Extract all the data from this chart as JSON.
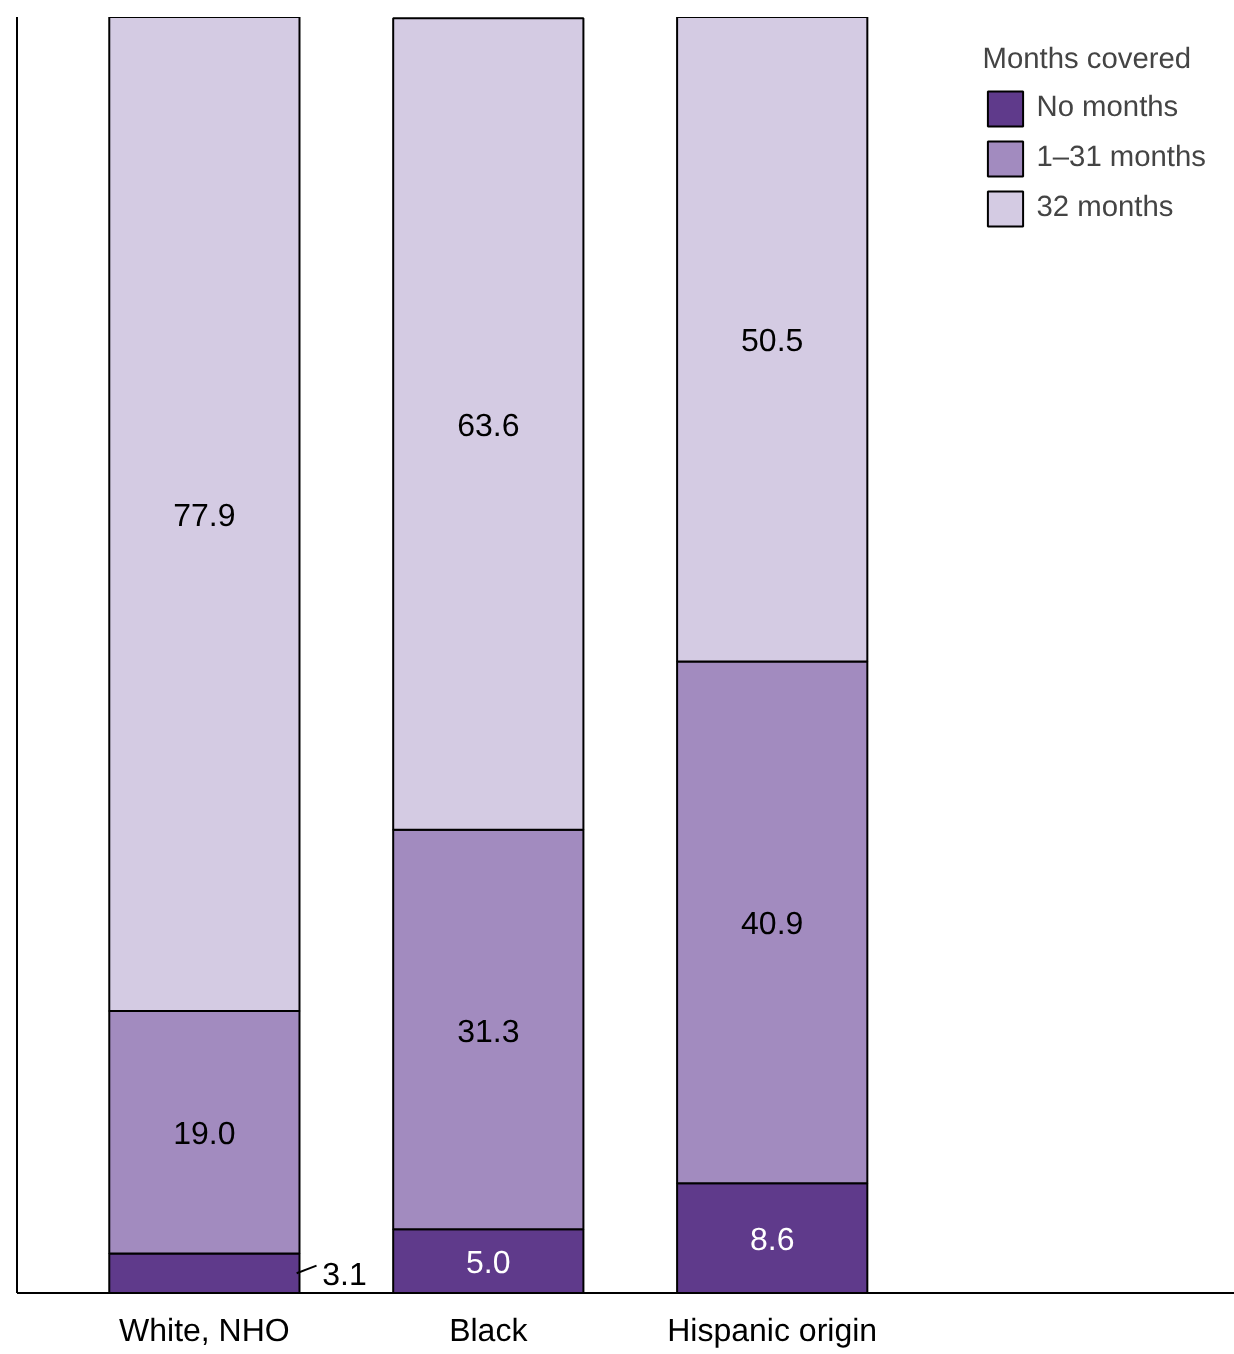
{
  "chart_data": {
    "type": "bar",
    "stacked": true,
    "categories": [
      "White, NHO",
      "Black",
      "Hispanic origin"
    ],
    "series": [
      {
        "name": "No months",
        "color": "#5f3a8b",
        "values": [
          3.1,
          5.0,
          8.6
        ],
        "value_labels": [
          "3.1",
          "5.0",
          "8.6"
        ]
      },
      {
        "name": "1–31 months",
        "color": "#a28bbf",
        "values": [
          19.0,
          31.3,
          40.9
        ],
        "value_labels": [
          "19.0",
          "31.3",
          "40.9"
        ]
      },
      {
        "name": "32 months",
        "color": "#d4cbe3",
        "values": [
          77.9,
          63.6,
          50.5
        ],
        "value_labels": [
          "77.9",
          "63.6",
          "50.5"
        ]
      }
    ],
    "legend_title": "Months covered",
    "legend": "top right",
    "ylim": [
      0,
      100
    ],
    "tick_labels": "x",
    "grid": false
  }
}
